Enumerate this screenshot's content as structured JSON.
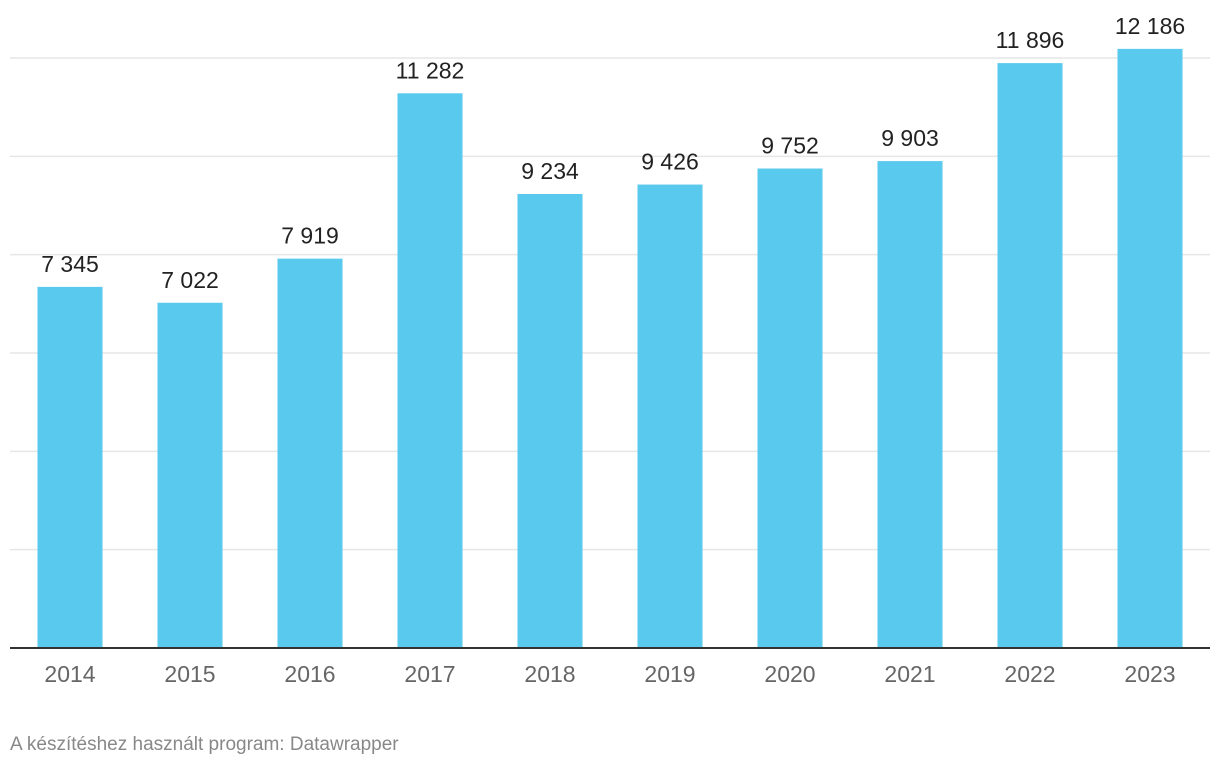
{
  "chart_data": {
    "type": "bar",
    "categories": [
      "2014",
      "2015",
      "2016",
      "2017",
      "2018",
      "2019",
      "2020",
      "2021",
      "2022",
      "2023"
    ],
    "values": [
      7345,
      7022,
      7919,
      11282,
      9234,
      9426,
      9752,
      9903,
      11896,
      12186
    ],
    "value_labels": [
      "7 345",
      "7 022",
      "7 919",
      "11 282",
      "9 234",
      "9 426",
      "9 752",
      "9 903",
      "11 896",
      "12 186"
    ],
    "ylim": [
      0,
      12000
    ],
    "gridlines": [
      0,
      2000,
      4000,
      6000,
      8000,
      10000,
      12000
    ],
    "grid": true,
    "bar_color": "#59c9ed",
    "grid_color": "#e6e6e6",
    "axis_color": "#333333"
  },
  "footer": {
    "credit": "A készítéshez használt program: Datawrapper"
  }
}
